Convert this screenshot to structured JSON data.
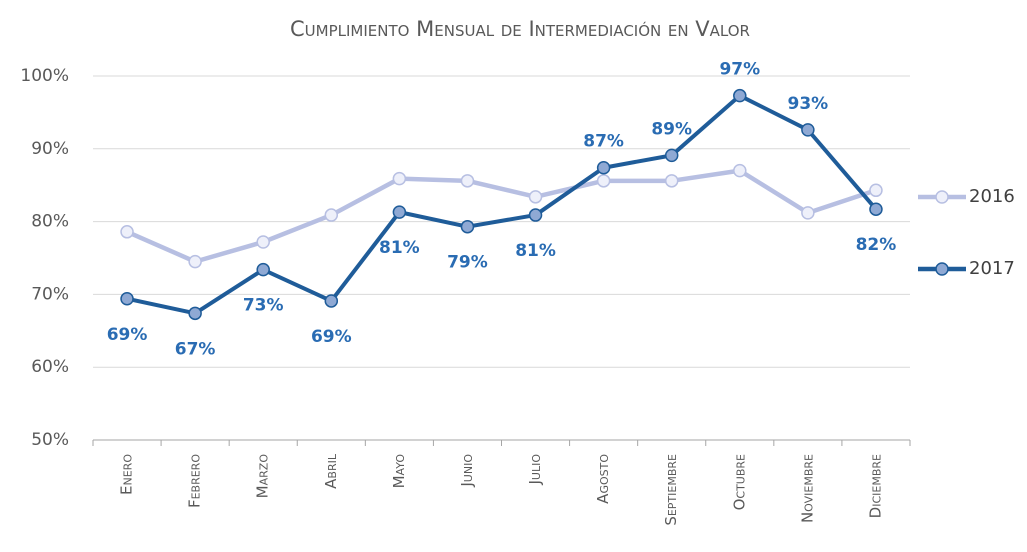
{
  "chart_data": {
    "type": "line",
    "title": "Cumplimiento Mensual de Intermediación en Valor",
    "categories": [
      "Enero",
      "Febrero",
      "Marzo",
      "Abril",
      "Mayo",
      "Junio",
      "Julio",
      "Agosto",
      "Septiembre",
      "Octubre",
      "Noviembre",
      "Diciembre"
    ],
    "series": [
      {
        "name": "2016",
        "color": "#b7bfe2",
        "values": [
          78.6,
          74.5,
          77.2,
          80.9,
          85.9,
          85.6,
          83.4,
          85.6,
          85.6,
          87.0,
          81.2,
          84.3
        ]
      },
      {
        "name": "2017",
        "color": "#1f5c99",
        "values": [
          69.4,
          67.4,
          73.4,
          69.1,
          81.3,
          79.3,
          80.9,
          87.4,
          89.1,
          97.3,
          92.6,
          81.7
        ],
        "value_labels": [
          "69%",
          "67%",
          "73%",
          "69%",
          "81%",
          "79%",
          "81%",
          "87%",
          "89%",
          "97%",
          "93%",
          "82%"
        ]
      }
    ],
    "ylim": [
      50,
      100
    ],
    "yticks": [
      {
        "value": 50,
        "label": "50%"
      },
      {
        "value": 60,
        "label": "60%"
      },
      {
        "value": 70,
        "label": "70%"
      },
      {
        "value": 80,
        "label": "80%"
      },
      {
        "value": 90,
        "label": "90%"
      },
      {
        "value": 100,
        "label": "100%"
      }
    ],
    "grid": true,
    "legend": "right"
  }
}
